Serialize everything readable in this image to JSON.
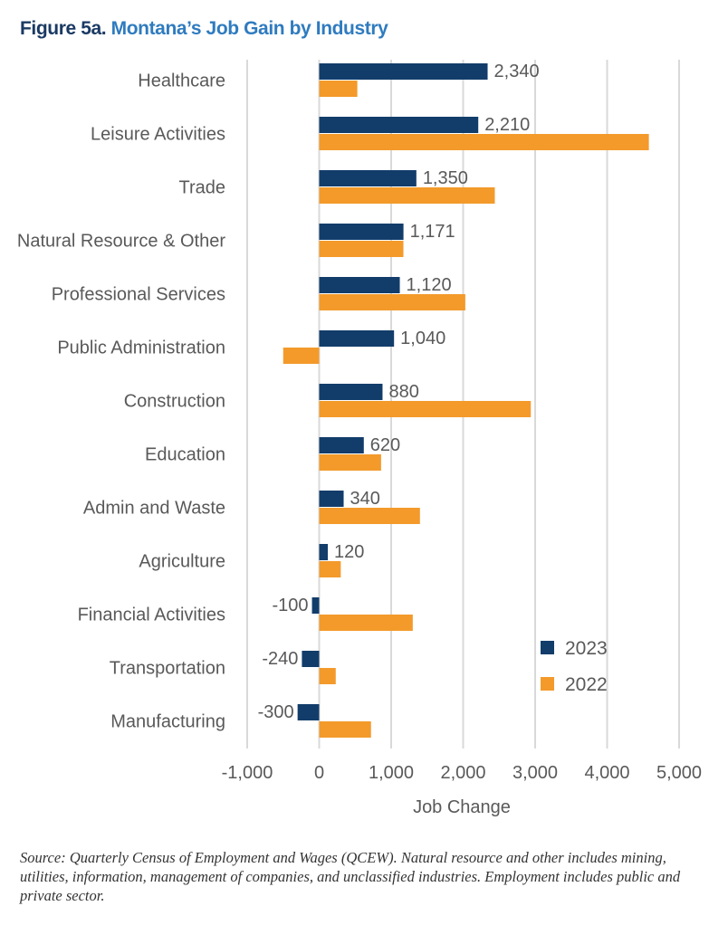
{
  "title": {
    "figure": "Figure 5a.",
    "name": "Montana’s Job Gain by Industry"
  },
  "chart_data": {
    "type": "bar",
    "orientation": "horizontal",
    "categories": [
      "Healthcare",
      "Leisure Activities",
      "Trade",
      "Natural Resource & Other",
      "Professional Services",
      "Public Administration",
      "Construction",
      "Education",
      "Admin and Waste",
      "Agriculture",
      "Financial Activities",
      "Transportation",
      "Manufacturing"
    ],
    "series": [
      {
        "name": "2023",
        "color": "#123d6b",
        "values": [
          2340,
          2210,
          1350,
          1171,
          1120,
          1040,
          880,
          620,
          340,
          120,
          -100,
          -240,
          -300
        ],
        "labels": [
          "2,340",
          "2,210",
          "1,350",
          "1,171",
          "1,120",
          "1,040",
          "880",
          "620",
          "340",
          "120",
          "-100",
          "-240",
          "-300"
        ]
      },
      {
        "name": "2022",
        "color": "#f39a2b",
        "values": [
          530,
          4580,
          2440,
          1170,
          2030,
          -500,
          2940,
          860,
          1400,
          300,
          1300,
          230,
          720
        ]
      }
    ],
    "xlabel": "Job Change",
    "xlim": [
      -1000,
      5000
    ],
    "xticks": [
      -1000,
      0,
      1000,
      2000,
      3000,
      4000,
      5000
    ],
    "xtick_labels": [
      "-1,000",
      "0",
      "1,000",
      "2,000",
      "3,000",
      "4,000",
      "5,000"
    ],
    "grid": true,
    "legend": "lower-right"
  },
  "source": "Source: Quarterly Census of Employment and Wages (QCEW). Natural resource and other includes mining, utilities, information, management of companies, and unclassified industries. Employment includes public and private sector."
}
